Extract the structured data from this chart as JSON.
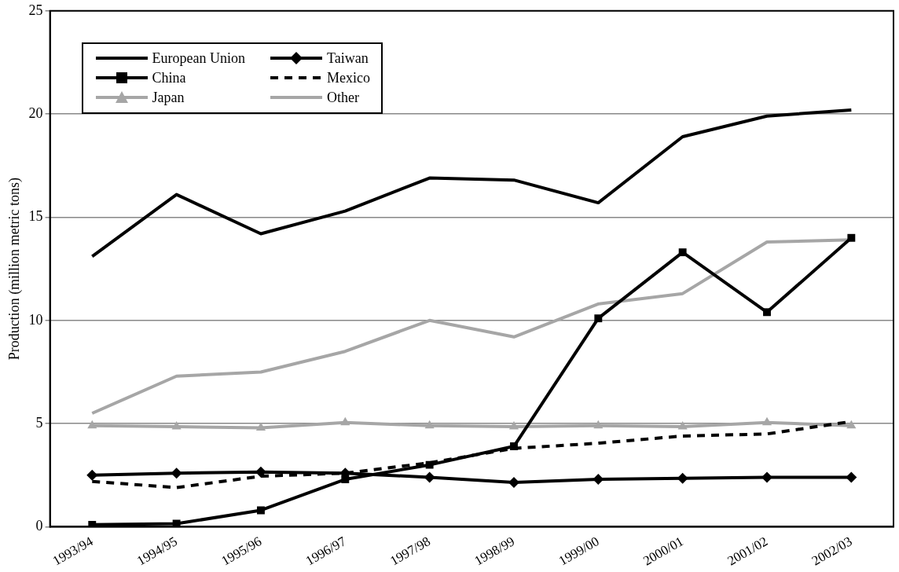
{
  "chart_data": {
    "type": "line",
    "ylabel": "Production (million metric tons)",
    "categories": [
      "1993/94",
      "1994/95",
      "1995/96",
      "1996/97",
      "1997/98",
      "1998/99",
      "1999/00",
      "2000/01",
      "2001/02",
      "2002/03"
    ],
    "ylim": [
      0,
      25
    ],
    "yticks": [
      0,
      5,
      10,
      15,
      20,
      25
    ],
    "grid": "y",
    "legend": "top left",
    "series": [
      {
        "name": "European Union",
        "color": "#000000",
        "marker": "none",
        "line_style": "solid",
        "values": [
          13.1,
          16.1,
          14.2,
          15.3,
          16.9,
          16.8,
          15.7,
          18.9,
          19.9,
          20.2
        ]
      },
      {
        "name": "Taiwan",
        "color": "#000000",
        "marker": "diamond",
        "line_style": "solid",
        "values": [
          2.5,
          2.6,
          2.65,
          2.6,
          2.4,
          2.15,
          2.3,
          2.35,
          2.4,
          2.4
        ]
      },
      {
        "name": "China",
        "color": "#000000",
        "marker": "square",
        "line_style": "solid",
        "values": [
          0.1,
          0.15,
          0.8,
          2.3,
          3.0,
          3.9,
          10.1,
          13.3,
          10.4,
          14.0
        ]
      },
      {
        "name": "Mexico",
        "color": "#000000",
        "marker": "none",
        "line_style": "dashed",
        "values": [
          2.2,
          1.9,
          2.45,
          2.6,
          3.1,
          3.8,
          4.05,
          4.4,
          4.5,
          5.1
        ]
      },
      {
        "name": "Japan",
        "color": "#a6a6a6",
        "marker": "triangle",
        "line_style": "solid",
        "values": [
          4.9,
          4.85,
          4.8,
          5.05,
          4.9,
          4.85,
          4.9,
          4.85,
          5.05,
          4.9
        ]
      },
      {
        "name": "Other",
        "color": "#a6a6a6",
        "marker": "none",
        "line_style": "solid",
        "values": [
          5.5,
          7.3,
          7.5,
          8.5,
          10.0,
          9.2,
          10.8,
          11.3,
          13.8,
          13.9
        ]
      }
    ]
  }
}
